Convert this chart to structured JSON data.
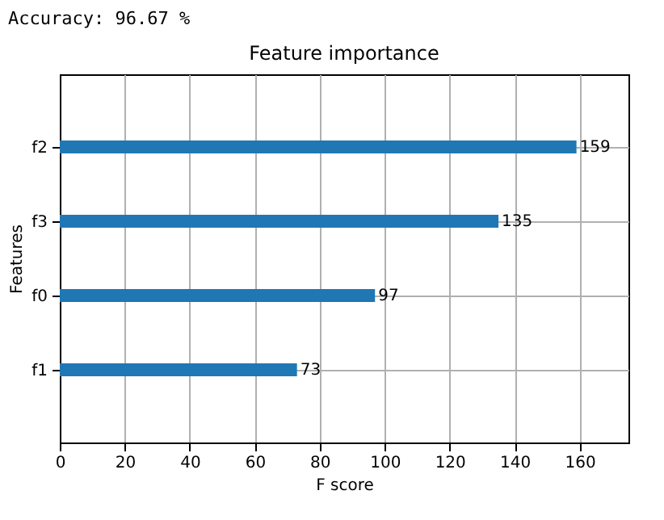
{
  "chart_data": {
    "type": "bar",
    "orientation": "horizontal",
    "title": "Feature importance",
    "xlabel": "F score",
    "ylabel": "Features",
    "categories": [
      "f2",
      "f3",
      "f0",
      "f1"
    ],
    "values": [
      159,
      135,
      97,
      73
    ],
    "color": "#1f77b4",
    "xlim": [
      0,
      175
    ],
    "xticks": [
      0,
      20,
      40,
      60,
      80,
      100,
      120,
      140,
      160
    ],
    "grid": true,
    "data_labels": true,
    "annotations": [
      "Accuracy: 96.67 %"
    ]
  }
}
